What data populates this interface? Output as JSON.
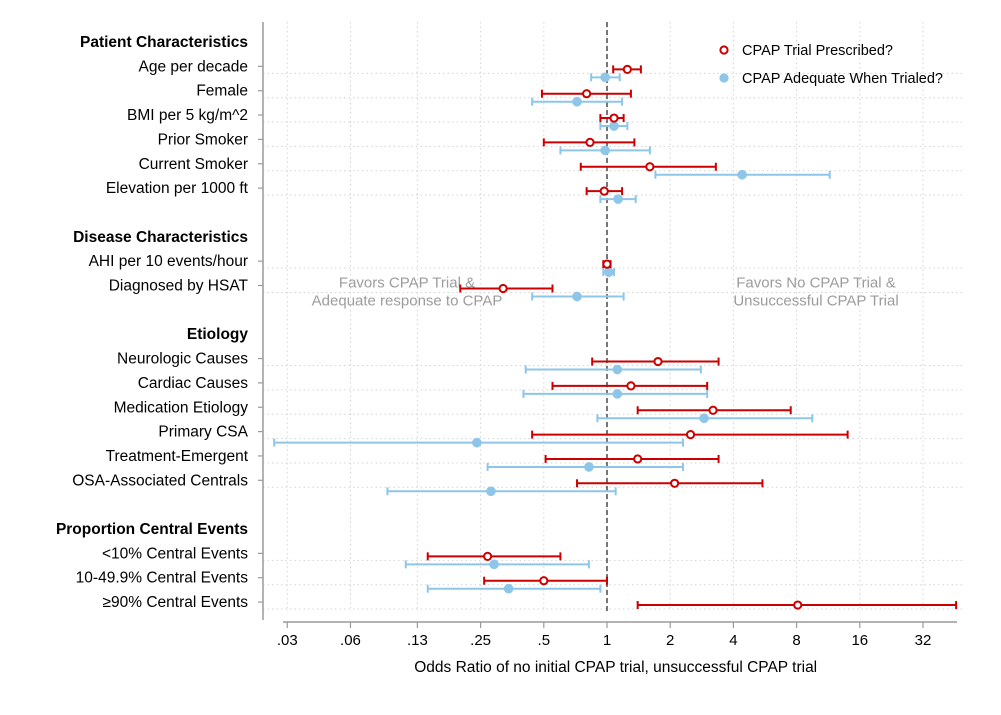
{
  "chart_data": {
    "type": "forest",
    "x_scale": "log2",
    "x_ticks": [
      {
        "value": 0.03,
        "label": ".03"
      },
      {
        "value": 0.06,
        "label": ".06"
      },
      {
        "value": 0.125,
        "label": ".13"
      },
      {
        "value": 0.25,
        "label": ".25"
      },
      {
        "value": 0.5,
        "label": ".5"
      },
      {
        "value": 1,
        "label": "1"
      },
      {
        "value": 2,
        "label": "2"
      },
      {
        "value": 4,
        "label": "4"
      },
      {
        "value": 8,
        "label": "8"
      },
      {
        "value": 16,
        "label": "16"
      },
      {
        "value": 32,
        "label": "32"
      }
    ],
    "xlabel": "Odds Ratio of no initial CPAP trial, unsuccessful CPAP trial",
    "xlim": [
      0.025,
      48
    ],
    "reference_line": 1,
    "grid": true,
    "legend": {
      "position": "top-right",
      "items": [
        {
          "series": "prescribed",
          "label": "CPAP Trial Prescribed?"
        },
        {
          "series": "adequate",
          "label": "CPAP Adequate When Trialed?"
        }
      ]
    },
    "series": [
      {
        "key": "prescribed",
        "name": "CPAP Trial Prescribed?",
        "color": "#cc0000",
        "marker": "hollow-circle"
      },
      {
        "key": "adequate",
        "name": "CPAP Adequate When Trialed?",
        "color": "#8ec6ea",
        "marker": "filled-circle"
      }
    ],
    "annotations": {
      "left": [
        "Favors CPAP Trial &",
        "Adequate response to CPAP"
      ],
      "right": [
        "Favors No CPAP Trial &",
        "Unsuccessful CPAP Trial"
      ]
    },
    "sections": [
      {
        "heading": "Patient Characteristics",
        "rows": [
          {
            "label": "Age per decade",
            "prescribed": {
              "est": 1.25,
              "lo": 1.07,
              "hi": 1.45
            },
            "adequate": {
              "est": 0.98,
              "lo": 0.84,
              "hi": 1.15
            }
          },
          {
            "label": "Female",
            "prescribed": {
              "est": 0.8,
              "lo": 0.49,
              "hi": 1.3
            },
            "adequate": {
              "est": 0.72,
              "lo": 0.44,
              "hi": 1.18
            }
          },
          {
            "label": "BMI per 5 kg/m^2",
            "prescribed": {
              "est": 1.08,
              "lo": 0.93,
              "hi": 1.2
            },
            "adequate": {
              "est": 1.08,
              "lo": 0.93,
              "hi": 1.25
            }
          },
          {
            "label": "Prior Smoker",
            "prescribed": {
              "est": 0.83,
              "lo": 0.5,
              "hi": 1.35
            },
            "adequate": {
              "est": 0.98,
              "lo": 0.6,
              "hi": 1.6
            }
          },
          {
            "label": "Current Smoker",
            "prescribed": {
              "est": 1.6,
              "lo": 0.75,
              "hi": 3.3
            },
            "adequate": {
              "est": 4.4,
              "lo": 1.7,
              "hi": 11.5
            }
          },
          {
            "label": "Elevation per 1000 ft",
            "prescribed": {
              "est": 0.97,
              "lo": 0.8,
              "hi": 1.18
            },
            "adequate": {
              "est": 1.13,
              "lo": 0.93,
              "hi": 1.37
            }
          }
        ]
      },
      {
        "heading": "Disease Characteristics",
        "rows": [
          {
            "label": "AHI per 10 events/hour",
            "prescribed": {
              "est": 1.0,
              "lo": 0.96,
              "hi": 1.04
            },
            "adequate": {
              "est": 1.02,
              "lo": 0.96,
              "hi": 1.08
            }
          },
          {
            "label": "Diagnosed by HSAT",
            "prescribed": {
              "est": 0.32,
              "lo": 0.2,
              "hi": 0.55
            },
            "adequate": {
              "est": 0.72,
              "lo": 0.44,
              "hi": 1.2
            }
          }
        ]
      },
      {
        "heading": "Etiology",
        "rows": [
          {
            "label": "Neurologic Causes",
            "prescribed": {
              "est": 1.75,
              "lo": 0.85,
              "hi": 3.4
            },
            "adequate": {
              "est": 1.12,
              "lo": 0.41,
              "hi": 2.8
            }
          },
          {
            "label": "Cardiac Causes",
            "prescribed": {
              "est": 1.3,
              "lo": 0.55,
              "hi": 3.0
            },
            "adequate": {
              "est": 1.12,
              "lo": 0.4,
              "hi": 3.0
            }
          },
          {
            "label": "Medication Etiology",
            "prescribed": {
              "est": 3.2,
              "lo": 1.4,
              "hi": 7.5
            },
            "adequate": {
              "est": 2.9,
              "lo": 0.9,
              "hi": 9.5
            }
          },
          {
            "label": "Primary CSA",
            "prescribed": {
              "est": 2.5,
              "lo": 0.44,
              "hi": 14.0
            },
            "adequate": {
              "est": 0.24,
              "lo": 0.026,
              "hi": 2.3
            }
          },
          {
            "label": "Treatment-Emergent",
            "prescribed": {
              "est": 1.4,
              "lo": 0.51,
              "hi": 3.4
            },
            "adequate": {
              "est": 0.82,
              "lo": 0.27,
              "hi": 2.3
            }
          },
          {
            "label": "OSA-Associated Centrals",
            "prescribed": {
              "est": 2.1,
              "lo": 0.72,
              "hi": 5.5
            },
            "adequate": {
              "est": 0.28,
              "lo": 0.09,
              "hi": 1.1
            }
          }
        ]
      },
      {
        "heading": "Proportion Central Events",
        "rows": [
          {
            "label": "<10% Central Events",
            "prescribed": {
              "est": 0.27,
              "lo": 0.14,
              "hi": 0.6
            },
            "adequate": {
              "est": 0.29,
              "lo": 0.11,
              "hi": 0.82
            }
          },
          {
            "label": "10-49.9% Central Events",
            "prescribed": {
              "est": 0.5,
              "lo": 0.26,
              "hi": 1.0
            },
            "adequate": {
              "est": 0.34,
              "lo": 0.14,
              "hi": 0.93
            }
          },
          {
            "label": "≥90% Central Events",
            "prescribed": {
              "est": 8.1,
              "lo": 1.4,
              "hi": 46.0
            },
            "adequate": null
          }
        ]
      }
    ]
  }
}
